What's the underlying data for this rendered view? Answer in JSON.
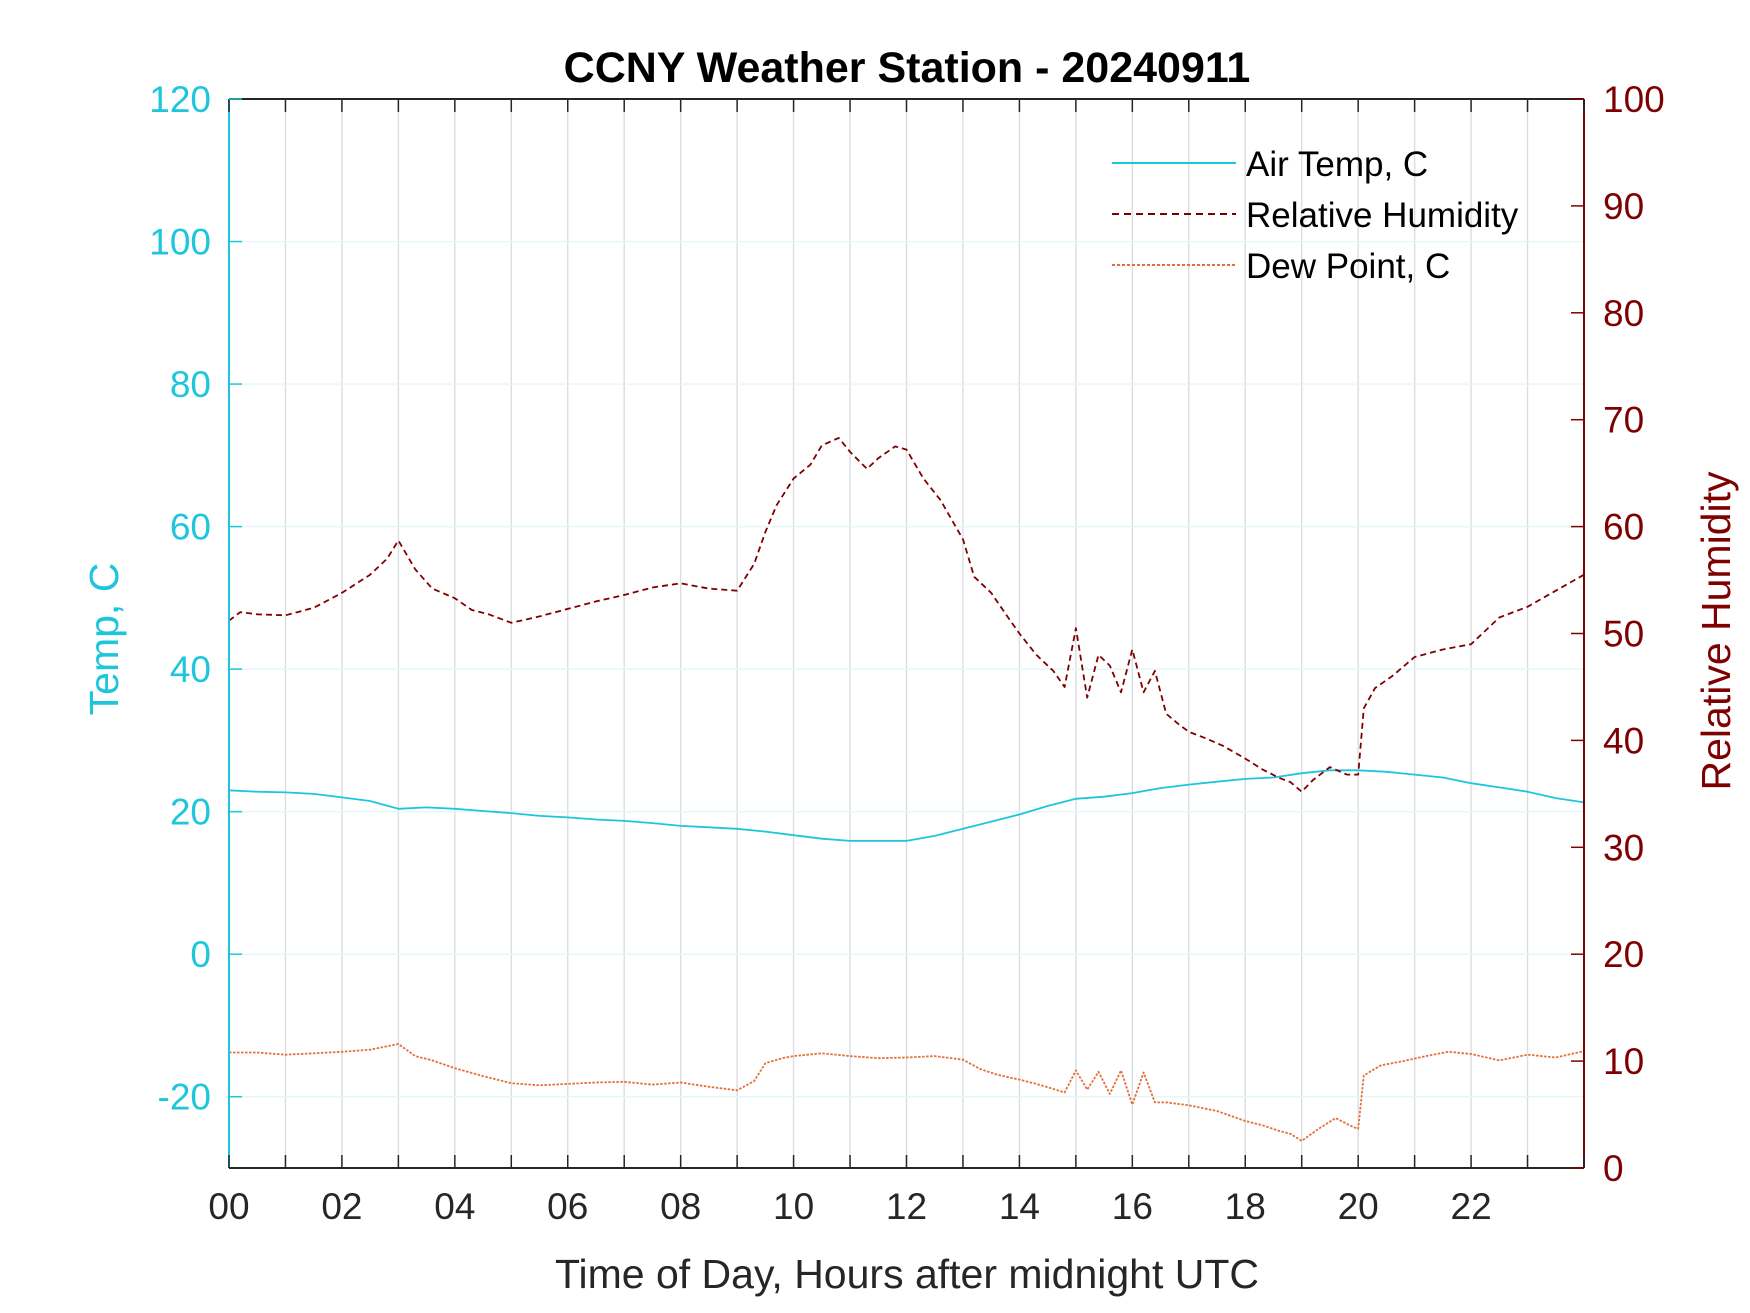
{
  "chart_data": {
    "type": "line",
    "title": "CCNY Weather Station - 20240911",
    "xlabel": "Time of Day, Hours after midnight UTC",
    "ylabel_left": "Temp, C",
    "ylabel_right": "Relative Humidity",
    "xlim": [
      0,
      24
    ],
    "ylim_left": [
      -30,
      120
    ],
    "ylim_right": [
      0,
      100
    ],
    "xticks": [
      0,
      2,
      4,
      6,
      8,
      10,
      12,
      14,
      16,
      18,
      20,
      22
    ],
    "xtick_labels": [
      "00",
      "02",
      "04",
      "06",
      "08",
      "10",
      "12",
      "14",
      "16",
      "18",
      "20",
      "22"
    ],
    "yticks_left": [
      -20,
      0,
      20,
      40,
      60,
      80,
      100,
      120
    ],
    "yticks_right": [
      0,
      10,
      20,
      30,
      40,
      50,
      60,
      70,
      80,
      90,
      100
    ],
    "grid": true,
    "legend_position": "top-right",
    "colors": {
      "left_axis": "#1ec6dc",
      "right_axis": "#7f0000",
      "air_temp": "#1ec6dc",
      "relative_humidity": "#7f0000",
      "dew_point": "#e2703a",
      "grid": "#d9dee3"
    },
    "series": [
      {
        "name": "Air Temp, C",
        "axis": "left",
        "style": "solid",
        "x": [
          0,
          0.5,
          1,
          1.5,
          2,
          2.5,
          3,
          3.5,
          4,
          4.5,
          5,
          5.5,
          6,
          6.5,
          7,
          7.5,
          8,
          8.5,
          9,
          9.5,
          10,
          10.5,
          11,
          11.5,
          12,
          12.5,
          13,
          13.5,
          14,
          14.5,
          15,
          15.5,
          16,
          16.5,
          17,
          17.5,
          18,
          18.5,
          19,
          19.5,
          20,
          20.5,
          21,
          21.5,
          22,
          22.5,
          23,
          23.5,
          24
        ],
        "y": [
          23.0,
          22.8,
          22.7,
          22.5,
          22.0,
          21.5,
          20.4,
          20.6,
          20.4,
          20.1,
          19.8,
          19.4,
          19.2,
          18.9,
          18.7,
          18.4,
          18.0,
          17.8,
          17.6,
          17.2,
          16.7,
          16.2,
          15.9,
          15.9,
          15.9,
          16.6,
          17.6,
          18.6,
          19.6,
          20.8,
          21.8,
          22.1,
          22.6,
          23.3,
          23.8,
          24.2,
          24.6,
          24.8,
          25.4,
          25.8,
          25.8,
          25.6,
          25.2,
          24.8,
          24.0,
          23.4,
          22.8,
          21.9,
          21.3
        ]
      },
      {
        "name": "Relative Humidity",
        "axis": "right",
        "style": "dashed",
        "x": [
          0,
          0.2,
          0.5,
          1,
          1.5,
          2,
          2.5,
          2.8,
          3,
          3.3,
          3.6,
          4,
          4.3,
          4.6,
          5,
          5.5,
          6,
          6.5,
          7,
          7.5,
          8,
          8.5,
          9,
          9.3,
          9.5,
          9.7,
          10,
          10.3,
          10.5,
          10.8,
          11,
          11.3,
          11.5,
          11.8,
          12,
          12.3,
          12.6,
          13,
          13.2,
          13.5,
          13.8,
          14,
          14.3,
          14.6,
          14.8,
          15,
          15.2,
          15.4,
          15.6,
          15.8,
          16,
          16.2,
          16.4,
          16.6,
          16.8,
          17,
          17.3,
          17.6,
          18,
          18.3,
          18.6,
          18.8,
          19,
          19.2,
          19.5,
          19.8,
          20,
          20.1,
          20.3,
          20.6,
          21,
          21.5,
          22,
          22.5,
          23,
          23.5,
          24
        ],
        "y": [
          51.2,
          52.0,
          51.8,
          51.7,
          52.4,
          53.8,
          55.5,
          57.0,
          58.7,
          56.0,
          54.2,
          53.3,
          52.2,
          51.8,
          51.0,
          51.6,
          52.3,
          53.0,
          53.6,
          54.3,
          54.7,
          54.2,
          54.0,
          56.5,
          59.5,
          62.0,
          64.5,
          65.8,
          67.6,
          68.3,
          67.0,
          65.4,
          66.4,
          67.5,
          67.2,
          64.5,
          62.5,
          58.8,
          55.3,
          53.8,
          51.5,
          50.0,
          48.0,
          46.5,
          45.0,
          50.5,
          44.0,
          48.0,
          47.0,
          44.5,
          48.5,
          44.5,
          46.5,
          42.5,
          41.6,
          40.8,
          40.2,
          39.5,
          38.3,
          37.3,
          36.5,
          36.1,
          35.2,
          36.3,
          37.5,
          36.8,
          36.8,
          43.0,
          44.9,
          46.0,
          47.8,
          48.5,
          49.0,
          51.5,
          52.5,
          54.0,
          55.5
        ]
      },
      {
        "name": "Dew Point, C",
        "axis": "left",
        "style": "dotted",
        "x": [
          0,
          0.5,
          1,
          1.5,
          2,
          2.5,
          3,
          3.3,
          3.6,
          4,
          4.5,
          5,
          5.5,
          6,
          6.5,
          7,
          7.5,
          8,
          8.5,
          9,
          9.3,
          9.5,
          9.8,
          10,
          10.5,
          11,
          11.5,
          12,
          12.5,
          13,
          13.3,
          13.6,
          14,
          14.3,
          14.6,
          14.8,
          15,
          15.2,
          15.4,
          15.6,
          15.8,
          16,
          16.2,
          16.4,
          16.6,
          17,
          17.5,
          18,
          18.3,
          18.6,
          18.8,
          19,
          19.3,
          19.6,
          19.9,
          20,
          20.1,
          20.4,
          20.8,
          21.2,
          21.6,
          22,
          22.5,
          23,
          23.5,
          24
        ],
        "y": [
          -13.8,
          -13.8,
          -14.1,
          -13.9,
          -13.7,
          -13.4,
          -12.6,
          -14.3,
          -14.9,
          -16.0,
          -17.1,
          -18.1,
          -18.4,
          -18.2,
          -18.0,
          -17.9,
          -18.3,
          -18.0,
          -18.6,
          -19.1,
          -17.8,
          -15.3,
          -14.6,
          -14.3,
          -13.9,
          -14.3,
          -14.6,
          -14.5,
          -14.3,
          -14.8,
          -16.1,
          -16.9,
          -17.6,
          -18.2,
          -18.9,
          -19.4,
          -16.3,
          -19.0,
          -16.5,
          -19.6,
          -16.3,
          -21.1,
          -16.6,
          -20.8,
          -20.8,
          -21.2,
          -22.0,
          -23.4,
          -24.0,
          -24.8,
          -25.2,
          -26.2,
          -24.5,
          -23.0,
          -24.2,
          -24.5,
          -17.0,
          -15.6,
          -15.0,
          -14.3,
          -13.7,
          -14.0,
          -14.9,
          -14.1,
          -14.5,
          -13.6
        ]
      }
    ]
  }
}
